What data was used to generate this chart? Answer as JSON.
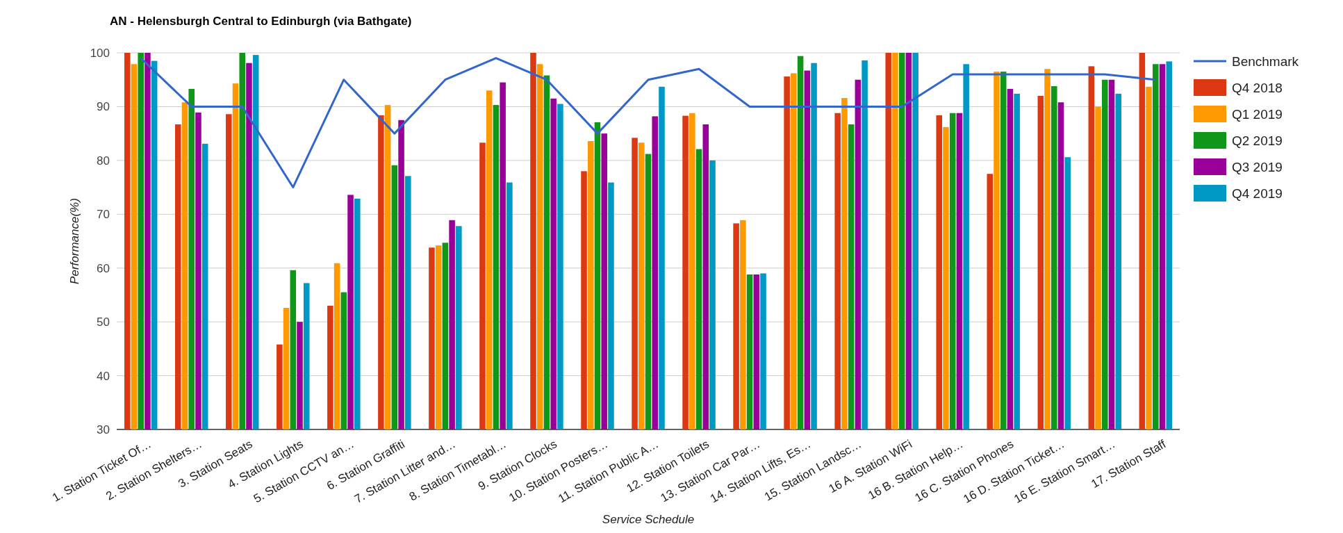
{
  "chart_data": {
    "type": "bar",
    "title": "AN - Helensburgh Central to Edinburgh (via Bathgate)",
    "xlabel": "Service Schedule",
    "ylabel": "Performance(%)",
    "categories": [
      "1. Station Ticket Of…",
      "2. Station Shelters…",
      "3. Station Seats",
      "4. Station Lights",
      "5. Station CCTV an…",
      "6. Station Graffiti",
      "7. Station Litter and…",
      "8. Station Timetabl…",
      "9. Station Clocks",
      "10. Station Posters…",
      "11. Station Public A…",
      "12. Station Toilets",
      "13. Station Car Par…",
      "14. Station Lifts, Es…",
      "15. Station Landsc…",
      "16 A. Station WiFi",
      "16 B. Station Help…",
      "16 C. Station Phones",
      "16 D. Station Ticket…",
      "16 E. Station Smart…",
      "17. Station Staff"
    ],
    "series": [
      {
        "name": "Benchmark",
        "type": "line",
        "color": "#3366cc",
        "values": [
          99,
          90,
          90,
          75,
          95,
          85,
          95,
          99,
          95,
          85,
          95,
          97,
          90,
          90,
          90,
          90,
          96,
          96,
          96,
          96,
          95
        ]
      },
      {
        "name": "Q4 2018",
        "color": "#dc3912",
        "values": [
          100,
          86.7,
          88.6,
          45.8,
          53,
          88.4,
          63.8,
          83.3,
          100,
          78,
          84.2,
          88.3,
          68.3,
          95.6,
          88.8,
          100,
          88.4,
          77.5,
          92,
          97.5,
          100
        ]
      },
      {
        "name": "Q1 2019",
        "color": "#ff9900",
        "values": [
          97.9,
          90.8,
          94.3,
          52.6,
          60.9,
          90.3,
          64.2,
          93,
          97.9,
          83.6,
          83.3,
          88.8,
          68.9,
          96.2,
          91.6,
          100,
          86.2,
          96.5,
          97,
          90,
          93.7
        ]
      },
      {
        "name": "Q2 2019",
        "color": "#109618",
        "values": [
          100,
          93.3,
          100,
          59.6,
          55.5,
          79.1,
          64.7,
          90.3,
          95.8,
          87.1,
          81.2,
          82.1,
          58.8,
          99.4,
          86.7,
          100,
          88.8,
          96.5,
          93.8,
          95,
          97.9
        ]
      },
      {
        "name": "Q3 2019",
        "color": "#990099",
        "values": [
          100,
          88.9,
          98.1,
          50,
          73.6,
          87.5,
          68.9,
          94.5,
          91.5,
          85,
          88.2,
          86.7,
          58.8,
          96.7,
          95,
          100,
          88.8,
          93.3,
          90.8,
          95,
          97.9
        ]
      },
      {
        "name": "Q4 2019",
        "color": "#0099c6",
        "values": [
          98.5,
          83.1,
          99.6,
          57.2,
          72.9,
          77.1,
          67.8,
          75.9,
          90.5,
          75.9,
          93.7,
          80,
          59,
          98.1,
          98.6,
          100,
          97.9,
          92.4,
          80.6,
          92.4,
          98.4
        ]
      }
    ],
    "ylim": [
      30,
      100
    ],
    "yticks": [
      30,
      40,
      50,
      60,
      70,
      80,
      90,
      100
    ],
    "grid": "y",
    "legend": "right"
  }
}
